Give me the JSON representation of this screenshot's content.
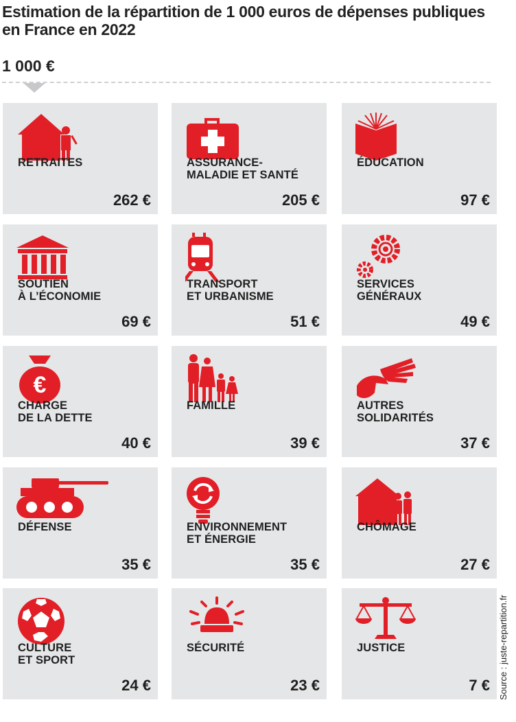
{
  "header": {
    "title": "Estimation de la répartition de 1 000 euros de dépenses publiques en France en 2022",
    "total": "1 000 €"
  },
  "colors": {
    "accent": "#e21e26",
    "tile": "#e4e6e7"
  },
  "tiles": [
    {
      "label": "RETRAITES",
      "amount": "262 €",
      "icon": "house-with-person-icon"
    },
    {
      "label": "ASSURANCE-\nMALADIE ET SANTÉ",
      "amount": "205 €",
      "icon": "medical-kit-icon"
    },
    {
      "label": "ÉDUCATION",
      "amount": "97 €",
      "icon": "open-book-icon"
    },
    {
      "label": "SOUTIEN\nÀ L’ÉCONOMIE",
      "amount": "69 €",
      "icon": "bank-building-icon"
    },
    {
      "label": "TRANSPORT\nET URBANISME",
      "amount": "51 €",
      "icon": "train-icon"
    },
    {
      "label": "SERVICES\nGÉNÉRAUX",
      "amount": "49 €",
      "icon": "gears-icon"
    },
    {
      "label": "CHARGE\nDE LA DETTE",
      "amount": "40 €",
      "icon": "money-bag-euro-icon"
    },
    {
      "label": "FAMILLE",
      "amount": "39 €",
      "icon": "family-icon"
    },
    {
      "label": "AUTRES\nSOLIDARITÉS",
      "amount": "37 €",
      "icon": "helping-hands-icon"
    },
    {
      "label": "DÉFENSE",
      "amount": "35 €",
      "icon": "tank-icon"
    },
    {
      "label": "ENVIRONNEMENT\nET ÉNERGIE",
      "amount": "35 €",
      "icon": "recycling-bulb-icon"
    },
    {
      "label": "CHÔMAGE",
      "amount": "27 €",
      "icon": "house-with-family-icon"
    },
    {
      "label": "CULTURE\nET SPORT",
      "amount": "24 €",
      "icon": "soccer-ball-icon"
    },
    {
      "label": "SÉCURITÉ",
      "amount": "23 €",
      "icon": "siren-icon"
    },
    {
      "label": "JUSTICE",
      "amount": "7 €",
      "icon": "scales-icon"
    }
  ],
  "source": "Source : juste-repartition.fr"
}
